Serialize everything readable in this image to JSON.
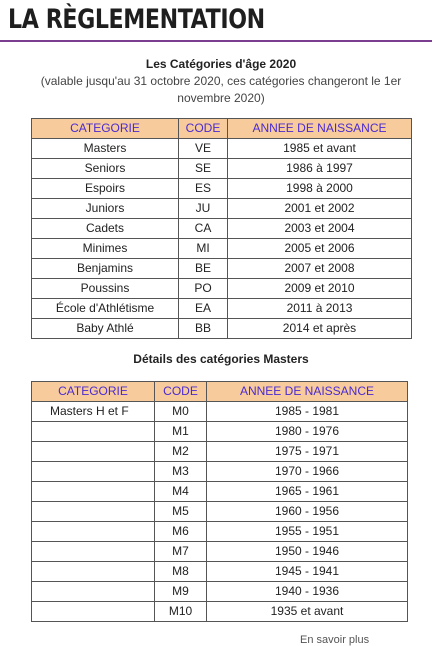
{
  "page": {
    "title": "LA RÈGLEMENTATION"
  },
  "intro": {
    "heading": "Les Catégories d'âge 2020",
    "note": "(valable jusqu'au 31 octobre 2020, ces catégories changeront le 1er novembre 2020)"
  },
  "age_table": {
    "headers": [
      "CATEGORIE",
      "CODE",
      "ANNEE DE NAISSANCE"
    ],
    "rows": [
      [
        "Masters",
        "VE",
        "1985 et avant"
      ],
      [
        "Seniors",
        "SE",
        "1986 à 1997"
      ],
      [
        "Espoirs",
        "ES",
        "1998 à 2000"
      ],
      [
        "Juniors",
        "JU",
        "2001 et 2002"
      ],
      [
        "Cadets",
        "CA",
        "2003 et 2004"
      ],
      [
        "Minimes",
        "MI",
        "2005 et 2006"
      ],
      [
        "Benjamins",
        "BE",
        "2007 et 2008"
      ],
      [
        "Poussins",
        "PO",
        "2009 et 2010"
      ],
      [
        "École d'Athlétisme",
        "EA",
        "2011 à 2013"
      ],
      [
        "Baby Athlé",
        "BB",
        "2014 et après"
      ]
    ]
  },
  "masters": {
    "heading": "Détails des catégories Masters",
    "headers": [
      "CATEGORIE",
      "CODE",
      "ANNEE DE NAISSANCE"
    ],
    "rows": [
      [
        "Masters H et F",
        "M0",
        "1985 - 1981"
      ],
      [
        "",
        "M1",
        "1980 - 1976"
      ],
      [
        "",
        "M2",
        "1975 - 1971"
      ],
      [
        "",
        "M3",
        "1970 - 1966"
      ],
      [
        "",
        "M4",
        "1965 - 1961"
      ],
      [
        "",
        "M5",
        "1960 - 1956"
      ],
      [
        "",
        "M6",
        "1955 - 1951"
      ],
      [
        "",
        "M7",
        "1950 - 1946"
      ],
      [
        "",
        "M8",
        "1945 - 1941"
      ],
      [
        "",
        "M9",
        "1940 - 1936"
      ],
      [
        "",
        "M10",
        "1935 et avant"
      ]
    ]
  },
  "footer": {
    "cut_text": "En savoir plus"
  }
}
